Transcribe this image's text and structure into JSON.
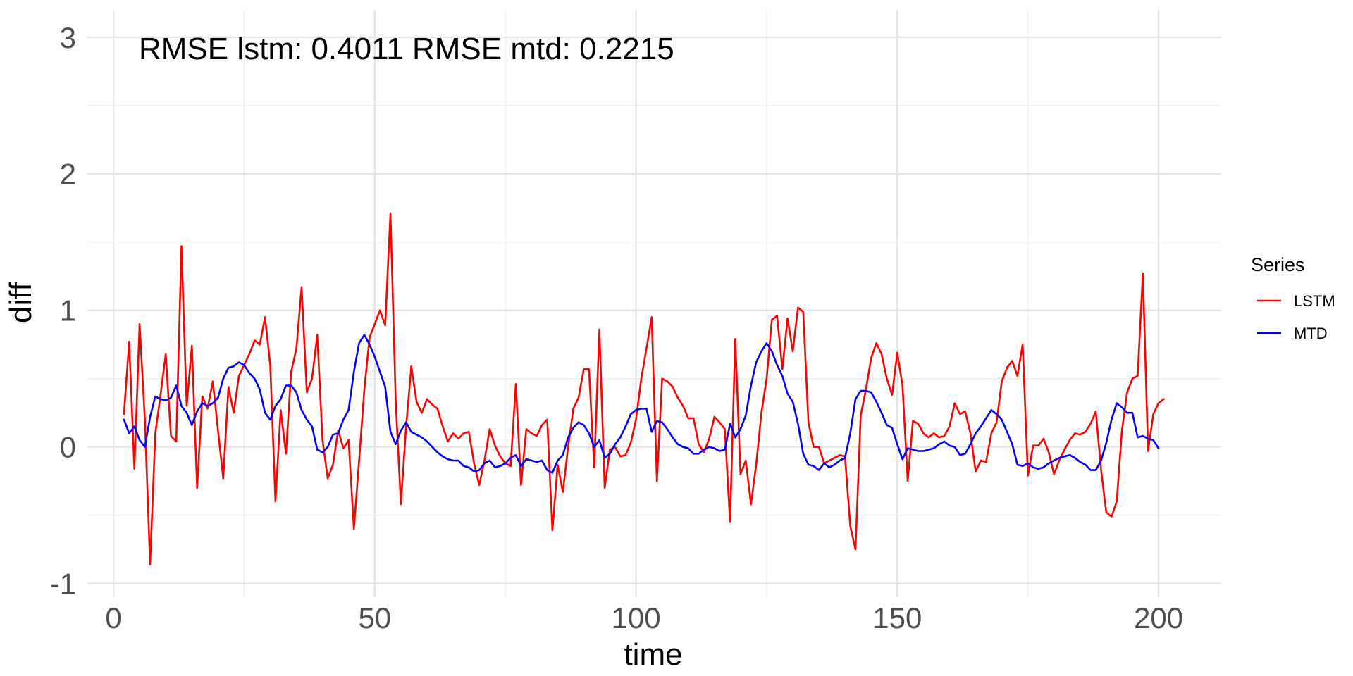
{
  "chart_data": {
    "type": "line",
    "title": "",
    "annotation": "RMSE lstm: 0.4011 RMSE mtd: 0.2215",
    "xlabel": "time",
    "ylabel": "diff",
    "xlim": [
      -5,
      212
    ],
    "ylim": [
      -1.1,
      3.2
    ],
    "x_ticks": [
      0,
      50,
      100,
      150,
      200
    ],
    "y_ticks": [
      -1,
      0,
      1,
      2,
      3
    ],
    "grid": true,
    "legend": {
      "title": "Series",
      "position": "right"
    },
    "x_start": 2,
    "series": [
      {
        "name": "LSTM",
        "color": "#ff0000",
        "values": [
          0.24,
          0.77,
          -0.16,
          0.9,
          0.2,
          -0.86,
          0.1,
          0.38,
          0.68,
          0.08,
          0.04,
          1.47,
          0.3,
          0.74,
          -0.3,
          0.37,
          0.28,
          0.48,
          0.12,
          -0.23,
          0.44,
          0.25,
          0.52,
          0.6,
          0.68,
          0.78,
          0.75,
          0.95,
          0.6,
          -0.4,
          0.27,
          -0.05,
          0.55,
          0.72,
          1.17,
          0.4,
          0.5,
          0.82,
          0.05,
          -0.23,
          -0.13,
          0.12,
          -0.01,
          0.05,
          -0.6,
          -0.1,
          0.42,
          0.8,
          0.9,
          1.0,
          0.89,
          1.71,
          0.34,
          -0.42,
          0.15,
          0.59,
          0.33,
          0.25,
          0.35,
          0.31,
          0.28,
          0.15,
          0.04,
          0.1,
          0.06,
          0.1,
          0.11,
          -0.12,
          -0.28,
          -0.1,
          0.13,
          0.01,
          -0.07,
          -0.12,
          -0.14,
          0.46,
          -0.28,
          0.13,
          0.1,
          0.08,
          0.16,
          0.2,
          -0.61,
          -0.13,
          -0.33,
          0.0,
          0.28,
          0.36,
          0.57,
          0.57,
          -0.15,
          0.86,
          -0.3,
          -0.02,
          0.0,
          -0.07,
          -0.06,
          0.03,
          0.2,
          0.5,
          0.72,
          0.95,
          -0.25,
          0.5,
          0.48,
          0.44,
          0.36,
          0.3,
          0.21,
          0.21,
          0.02,
          -0.04,
          0.06,
          0.22,
          0.18,
          0.13,
          -0.55,
          0.79,
          -0.2,
          -0.1,
          -0.42,
          -0.13,
          0.25,
          0.5,
          0.93,
          0.96,
          0.57,
          0.94,
          0.7,
          1.02,
          0.99,
          0.18,
          0.0,
          0.0,
          -0.12,
          -0.1,
          -0.08,
          -0.06,
          -0.07,
          -0.58,
          -0.75,
          0.23,
          0.42,
          0.65,
          0.76,
          0.68,
          0.5,
          0.38,
          0.69,
          0.45,
          -0.25,
          0.19,
          0.17,
          0.1,
          0.07,
          0.1,
          0.07,
          0.08,
          0.15,
          0.32,
          0.24,
          0.26,
          0.1,
          -0.18,
          -0.1,
          -0.11,
          0.1,
          0.18,
          0.48,
          0.58,
          0.63,
          0.52,
          0.75,
          -0.21,
          0.01,
          0.01,
          0.06,
          -0.04,
          -0.2,
          -0.1,
          -0.02,
          0.05,
          0.1,
          0.09,
          0.11,
          0.17,
          0.26,
          -0.17,
          -0.48,
          -0.51,
          -0.4,
          0.12,
          0.4,
          0.5,
          0.52,
          1.27,
          -0.03,
          0.24,
          0.32,
          0.35
        ]
      },
      {
        "name": "MTD",
        "color": "#0000ff",
        "values": [
          0.2,
          0.1,
          0.15,
          0.05,
          0.0,
          0.22,
          0.37,
          0.35,
          0.34,
          0.36,
          0.45,
          0.3,
          0.25,
          0.16,
          0.26,
          0.32,
          0.3,
          0.32,
          0.36,
          0.5,
          0.58,
          0.59,
          0.62,
          0.6,
          0.54,
          0.5,
          0.42,
          0.25,
          0.2,
          0.3,
          0.35,
          0.45,
          0.45,
          0.4,
          0.27,
          0.2,
          0.15,
          -0.02,
          -0.04,
          0.0,
          0.09,
          0.1,
          0.2,
          0.27,
          0.55,
          0.76,
          0.82,
          0.75,
          0.66,
          0.55,
          0.44,
          0.11,
          0.02,
          0.12,
          0.18,
          0.11,
          0.09,
          0.07,
          0.04,
          0.0,
          -0.04,
          -0.07,
          -0.09,
          -0.1,
          -0.1,
          -0.14,
          -0.15,
          -0.18,
          -0.17,
          -0.12,
          -0.1,
          -0.15,
          -0.14,
          -0.12,
          -0.08,
          -0.06,
          -0.14,
          -0.09,
          -0.1,
          -0.11,
          -0.1,
          -0.17,
          -0.19,
          -0.1,
          -0.06,
          0.07,
          0.14,
          0.18,
          0.16,
          0.1,
          0.0,
          0.05,
          -0.08,
          -0.05,
          0.02,
          0.07,
          0.15,
          0.24,
          0.27,
          0.28,
          0.28,
          0.11,
          0.19,
          0.18,
          0.13,
          0.07,
          0.02,
          0.0,
          -0.01,
          -0.05,
          -0.05,
          -0.02,
          0.0,
          -0.01,
          -0.03,
          -0.02,
          0.17,
          0.07,
          0.13,
          0.23,
          0.45,
          0.62,
          0.7,
          0.76,
          0.7,
          0.6,
          0.52,
          0.39,
          0.33,
          0.17,
          -0.05,
          -0.13,
          -0.14,
          -0.17,
          -0.12,
          -0.15,
          -0.13,
          -0.1,
          -0.08,
          0.1,
          0.35,
          0.41,
          0.41,
          0.4,
          0.33,
          0.25,
          0.16,
          0.14,
          0.02,
          -0.09,
          -0.01,
          -0.02,
          -0.03,
          -0.03,
          -0.02,
          -0.01,
          0.02,
          0.04,
          0.01,
          0.0,
          -0.06,
          -0.05,
          0.02,
          0.1,
          0.15,
          0.21,
          0.27,
          0.24,
          0.2,
          0.11,
          0.02,
          -0.13,
          -0.14,
          -0.12,
          -0.15,
          -0.16,
          -0.15,
          -0.12,
          -0.1,
          -0.08,
          -0.07,
          -0.06,
          -0.08,
          -0.11,
          -0.13,
          -0.17,
          -0.17,
          -0.1,
          0.03,
          0.2,
          0.32,
          0.29,
          0.25,
          0.25,
          0.07,
          0.08,
          0.06,
          0.05,
          -0.01
        ]
      }
    ]
  }
}
